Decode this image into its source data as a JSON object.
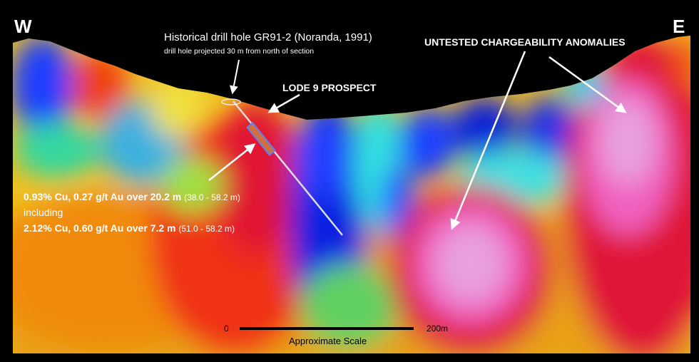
{
  "directions": {
    "west": "W",
    "east": "E"
  },
  "historical_hole": {
    "title": "Historical drill hole GR91-2 (Noranda, 1991)",
    "note": "drill hole projected 30 m from north of section"
  },
  "prospect_label": "LODE 9 PROSPECT",
  "anomalies_label": "UNTESTED CHARGEABILITY ANOMALIES",
  "intercepts": [
    {
      "text": "0.93% Cu, 0.27 g/t Au over 20.2 m",
      "interval": "(38.0 - 58.2 m)"
    },
    {
      "text": "including",
      "interval": ""
    },
    {
      "text": "2.12% Cu, 0.60 g/t Au over 7.2 m",
      "interval": "(51.0 - 58.2 m)"
    }
  ],
  "scale": {
    "start": "0",
    "end": "200m",
    "label": "Approximate Scale"
  },
  "colors": {
    "arrow": "#ffffff",
    "sky": "#000000",
    "scale_bar": "#000000"
  }
}
